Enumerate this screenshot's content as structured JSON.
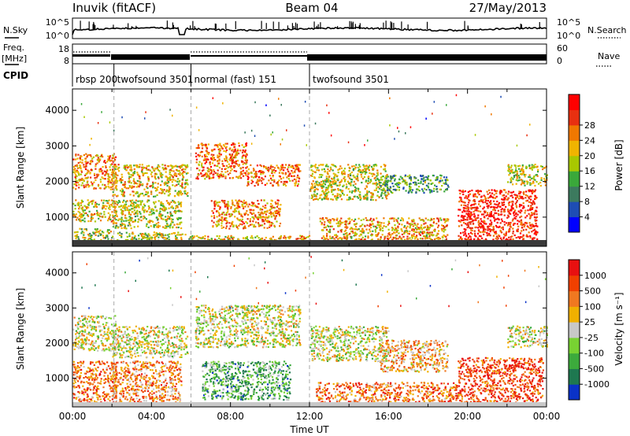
{
  "header": {
    "station": "Inuvik (fitACF)",
    "beam": "Beam 04",
    "date": "27/May/2013"
  },
  "summary_panel": {
    "left_top_label": "N.Sky",
    "left_top_ticks": [
      "10^5",
      "10^0"
    ],
    "right_top_label": "N.Search",
    "right_top_ticks": [
      "10^5",
      "10^0"
    ],
    "left_freq_label_1": "Freq.",
    "left_freq_label_2": "[MHz]",
    "left_freq_ticks": [
      "18",
      "8"
    ],
    "right_nave_label": "Nave",
    "right_nave_ticks": [
      "60",
      "0"
    ],
    "cpid_label": "CPID",
    "cpid_segments": [
      {
        "label": "rbsp 200",
        "start_hour": 0.0,
        "end_hour": 2.1
      },
      {
        "label": "twofsound 3501",
        "start_hour": 2.1,
        "end_hour": 6.0
      },
      {
        "label": "normal (fast) 151",
        "start_hour": 6.0,
        "end_hour": 12.0
      },
      {
        "label": "twofsound 3501",
        "start_hour": 12.0,
        "end_hour": 24.0
      }
    ]
  },
  "chart_data": [
    {
      "type": "heatmap",
      "name": "power",
      "ylabel": "Slant Range [km]",
      "xlabel": "",
      "xlim": [
        0,
        24
      ],
      "ylim": [
        180,
        4600
      ],
      "yticks": [
        "1000",
        "2000",
        "3000",
        "4000"
      ],
      "colorbar_label": "Power [dB]",
      "colorbar_ticks": [
        "4",
        "8",
        "12",
        "16",
        "20",
        "24",
        "28"
      ],
      "colorbar_colors": [
        "#0000ff",
        "#1e4db4",
        "#3c7a5e",
        "#3aa83a",
        "#a8c800",
        "#f0b400",
        "#f07800",
        "#e83010",
        "#ff0000"
      ],
      "scatter_bands": [
        {
          "t0": 0.0,
          "t1": 2.2,
          "r0": 1800,
          "r1": 2800,
          "level": 0.7
        },
        {
          "t0": 0.0,
          "t1": 2.2,
          "r0": 900,
          "r1": 1500,
          "level": 0.6
        },
        {
          "t0": 0.0,
          "t1": 2.0,
          "r0": 250,
          "r1": 700,
          "level": 0.5
        },
        {
          "t0": 2.0,
          "t1": 5.8,
          "r0": 1600,
          "r1": 2500,
          "level": 0.6
        },
        {
          "t0": 2.0,
          "t1": 5.5,
          "r0": 700,
          "r1": 1500,
          "level": 0.55
        },
        {
          "t0": 2.2,
          "t1": 6.0,
          "r0": 250,
          "r1": 600,
          "level": 0.5
        },
        {
          "t0": 6.2,
          "t1": 8.8,
          "r0": 2100,
          "r1": 3100,
          "level": 0.75
        },
        {
          "t0": 8.8,
          "t1": 11.5,
          "r0": 1900,
          "r1": 2500,
          "level": 0.75
        },
        {
          "t0": 7.0,
          "t1": 10.5,
          "r0": 700,
          "r1": 1500,
          "level": 0.7
        },
        {
          "t0": 6.0,
          "t1": 12.0,
          "r0": 250,
          "r1": 500,
          "level": 0.6
        },
        {
          "t0": 12.0,
          "t1": 16.0,
          "r0": 1500,
          "r1": 2500,
          "level": 0.55
        },
        {
          "t0": 12.5,
          "t1": 19.0,
          "r0": 300,
          "r1": 1000,
          "level": 0.65
        },
        {
          "t0": 15.5,
          "t1": 19.0,
          "r0": 1700,
          "r1": 2200,
          "level": 0.35
        },
        {
          "t0": 19.5,
          "t1": 23.5,
          "r0": 300,
          "r1": 1800,
          "level": 0.9
        },
        {
          "t0": 22.0,
          "t1": 24.0,
          "r0": 1900,
          "r1": 2500,
          "level": 0.55
        }
      ]
    },
    {
      "type": "heatmap",
      "name": "velocity",
      "ylabel": "Slant Range [km]",
      "xlabel": "Time UT",
      "xlim": [
        0,
        24
      ],
      "ylim": [
        180,
        4600
      ],
      "xticks": [
        "00:00",
        "04:00",
        "08:00",
        "12:00",
        "16:00",
        "20:00",
        "00:00"
      ],
      "yticks": [
        "1000",
        "2000",
        "3000",
        "4000"
      ],
      "colorbar_label": "Velocity [m s⁻¹]",
      "colorbar_ticks": [
        "1000",
        "500",
        "100",
        "25",
        "-25",
        "-100",
        "-500",
        "-1000"
      ],
      "colorbar_colors": [
        "#0a32c8",
        "#1e7850",
        "#3caa3c",
        "#78d232",
        "#c8c8c8",
        "#f0b000",
        "#f07820",
        "#f04000",
        "#e81010"
      ],
      "scatter_bands": [
        {
          "t0": 0.0,
          "t1": 2.2,
          "r0": 1800,
          "r1": 2800,
          "level": 0.5
        },
        {
          "t0": 0.0,
          "t1": 2.2,
          "r0": 250,
          "r1": 1500,
          "level": 0.75
        },
        {
          "t0": 2.0,
          "t1": 5.8,
          "r0": 1600,
          "r1": 2500,
          "level": 0.5
        },
        {
          "t0": 2.0,
          "t1": 5.5,
          "r0": 250,
          "r1": 1500,
          "level": 0.7
        },
        {
          "t0": 6.2,
          "t1": 11.5,
          "r0": 1900,
          "r1": 3100,
          "level": 0.5
        },
        {
          "t0": 6.5,
          "t1": 11.0,
          "r0": 400,
          "r1": 1500,
          "level": 0.3
        },
        {
          "t0": 12.0,
          "t1": 16.0,
          "r0": 1500,
          "r1": 2500,
          "level": 0.5
        },
        {
          "t0": 12.3,
          "t1": 19.5,
          "r0": 250,
          "r1": 900,
          "level": 0.75
        },
        {
          "t0": 15.5,
          "t1": 19.0,
          "r0": 1200,
          "r1": 2100,
          "level": 0.65
        },
        {
          "t0": 19.5,
          "t1": 23.8,
          "r0": 300,
          "r1": 1600,
          "level": 0.85
        },
        {
          "t0": 22.0,
          "t1": 24.0,
          "r0": 1900,
          "r1": 2500,
          "level": 0.5
        }
      ]
    }
  ]
}
